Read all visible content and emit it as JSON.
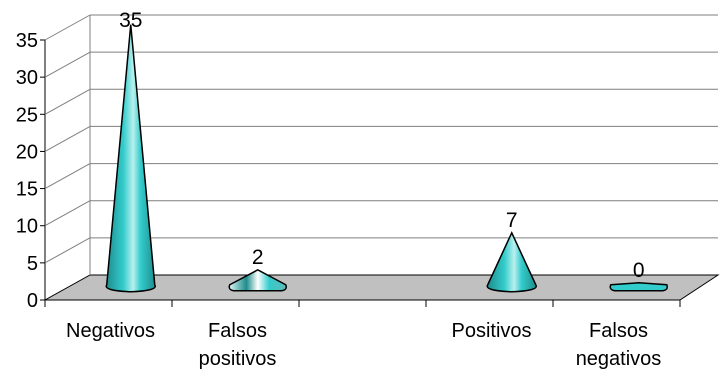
{
  "chart_data": {
    "type": "bar",
    "bar_shape": "cone-3d",
    "categories": [
      [
        "Negativos"
      ],
      [
        "Falsos",
        "positivos"
      ],
      [
        ""
      ],
      [
        "Positivos"
      ],
      [
        "Falsos",
        "negativos"
      ]
    ],
    "values": [
      35,
      2,
      null,
      7,
      0
    ],
    "data_labels": [
      "35",
      "2",
      "",
      "7",
      "0"
    ],
    "ylim": [
      0,
      35
    ],
    "yticks": [
      "0",
      "5",
      "10",
      "15",
      "20",
      "25",
      "30",
      "35"
    ],
    "ytick_values": [
      0,
      5,
      10,
      15,
      20,
      25,
      30,
      35
    ],
    "grid": true,
    "legend": "none",
    "colors": {
      "cone": "#33cccc",
      "cone_light": "#b9f0ee",
      "cone_dark": "#1f8c8c",
      "floor": "#c0c0c0",
      "grid": "#7f7f7f",
      "axis": "#000000"
    }
  }
}
